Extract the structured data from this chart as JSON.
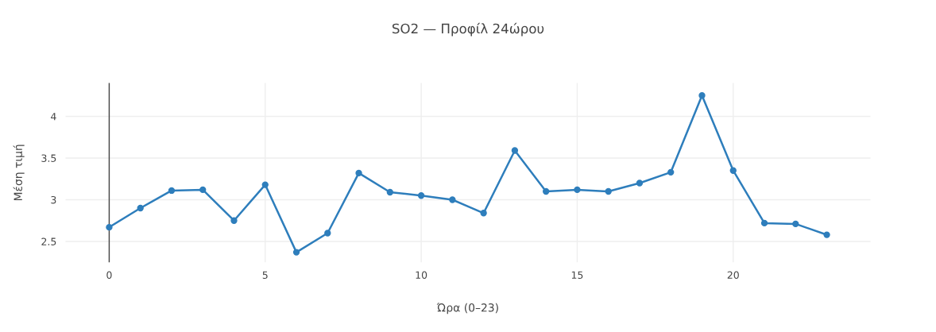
{
  "chart_data": {
    "type": "line",
    "title": "SO2 — Προφίλ 24ώρου",
    "xlabel": "Ώρα (0–23)",
    "ylabel": "Μέση τιμή",
    "x": [
      0,
      1,
      2,
      3,
      4,
      5,
      6,
      7,
      8,
      9,
      10,
      11,
      12,
      13,
      14,
      15,
      16,
      17,
      18,
      19,
      20,
      21,
      22,
      23
    ],
    "series": [
      {
        "color": "#2e7ebc",
        "values": [
          2.67,
          2.9,
          3.11,
          3.12,
          2.75,
          3.18,
          2.37,
          2.6,
          3.32,
          3.09,
          3.05,
          3.0,
          2.84,
          3.59,
          3.1,
          3.12,
          3.1,
          3.2,
          3.33,
          4.25,
          3.35,
          2.72,
          2.71,
          2.58
        ]
      }
    ],
    "xlim": [
      -1.4,
      24.4
    ],
    "ylim": [
      2.25,
      4.4
    ],
    "xticks": [
      0,
      5,
      10,
      15,
      20
    ],
    "yticks": [
      2.5,
      3,
      3.5,
      4
    ],
    "ref_lines": [
      {
        "axis": "x",
        "value": 0,
        "color": "#444444"
      }
    ],
    "grid": true,
    "marker": "circle",
    "line_style": "solid"
  }
}
